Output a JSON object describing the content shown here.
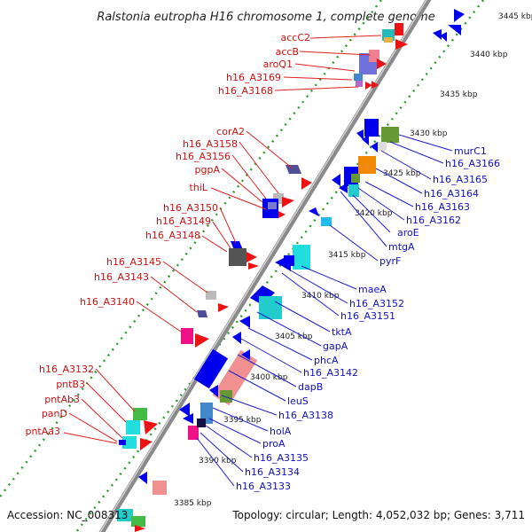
{
  "title": "Ralstonia eutropha H16 chromosome 1, complete genome",
  "accession": "Accession: NC_008313",
  "topology": "Topology: circular; Length: 4,052,032 bp; Genes: 3,711",
  "colors": {
    "left_label": "#d01010",
    "right_label": "#1010c8",
    "backbone": "#9a9a9a",
    "dots": "#2a9a2a",
    "gene_blue": "#0000ee",
    "gene_red": "#ee1111"
  },
  "kbp_ticks": [
    "3445 kbp",
    "3440 kbp",
    "3435 kbp",
    "3430 kbp",
    "3425 kbp",
    "3420 kbp",
    "3415 kbp",
    "3410 kbp",
    "3405 kbp",
    "3400 kbp",
    "3395 kbp",
    "3390 kbp",
    "3385 kbp"
  ],
  "left_labels": [
    "accC2",
    "accB",
    "aroQ1",
    "h16_A3169",
    "h16_A3168",
    "corA2",
    "h16_A3158",
    "h16_A3156",
    "pgpA",
    "thiL",
    "h16_A3150",
    "h16_A3149",
    "h16_A3148",
    "h16_A3145",
    "h16_A3143",
    "h16_A3140",
    "h16_A3132",
    "pntB3",
    "pntAb3",
    "panD",
    "pntAa3"
  ],
  "right_labels": [
    "murC1",
    "h16_A3166",
    "h16_A3165",
    "h16_A3164",
    "h16_A3163",
    "h16_A3162",
    "aroE",
    "mtgA",
    "pyrF",
    "maeA",
    "h16_A3152",
    "h16_A3151",
    "tktA",
    "gapA",
    "phcA",
    "h16_A3142",
    "dapB",
    "leuS",
    "h16_A3138",
    "holA",
    "proA",
    "h16_A3135",
    "h16_A3134",
    "h16_A3133"
  ]
}
